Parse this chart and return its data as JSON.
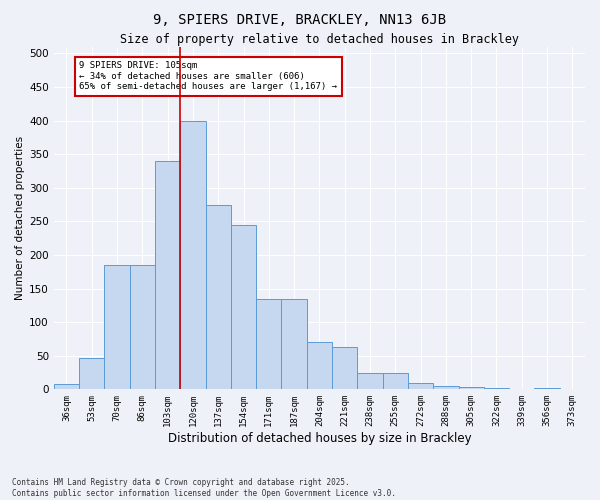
{
  "title1": "9, SPIERS DRIVE, BRACKLEY, NN13 6JB",
  "title2": "Size of property relative to detached houses in Brackley",
  "xlabel": "Distribution of detached houses by size in Brackley",
  "ylabel": "Number of detached properties",
  "categories": [
    "36sqm",
    "53sqm",
    "70sqm",
    "86sqm",
    "103sqm",
    "120sqm",
    "137sqm",
    "154sqm",
    "171sqm",
    "187sqm",
    "204sqm",
    "221sqm",
    "238sqm",
    "255sqm",
    "272sqm",
    "288sqm",
    "305sqm",
    "322sqm",
    "339sqm",
    "356sqm",
    "373sqm"
  ],
  "values": [
    8,
    46,
    185,
    185,
    340,
    400,
    275,
    245,
    135,
    135,
    70,
    63,
    25,
    25,
    10,
    5,
    3,
    2,
    1,
    2,
    1
  ],
  "bar_color": "#c5d8f0",
  "bar_edge_color": "#5b9bd5",
  "background_color": "#eef2f8",
  "grid_color": "#ffffff",
  "vline_x_index": 4.5,
  "vline_color": "#cc0000",
  "annotation_text": "9 SPIERS DRIVE: 105sqm\n← 34% of detached houses are smaller (606)\n65% of semi-detached houses are larger (1,167) →",
  "annotation_box_color": "#ffffff",
  "annotation_box_edge": "#cc0000",
  "footer1": "Contains HM Land Registry data © Crown copyright and database right 2025.",
  "footer2": "Contains public sector information licensed under the Open Government Licence v3.0.",
  "ylim": [
    0,
    510
  ],
  "yticks": [
    0,
    50,
    100,
    150,
    200,
    250,
    300,
    350,
    400,
    450,
    500
  ]
}
